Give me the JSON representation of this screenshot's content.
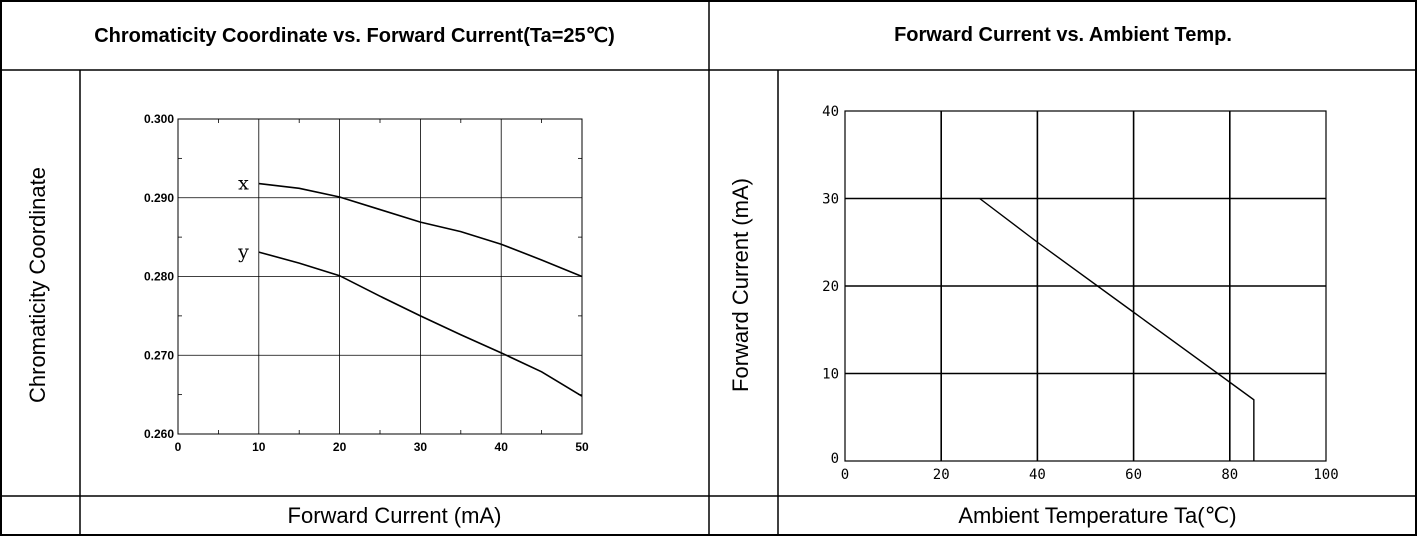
{
  "left_panel": {
    "title": "Chromaticity Coordinate vs. Forward Current(Ta=25℃)",
    "ylabel": "Chromaticity Coordinate",
    "xlabel": "Forward Current (mA)"
  },
  "right_panel": {
    "title": "Forward Current vs. Ambient Temp.",
    "ylabel": "Forward Current (mA)",
    "xlabel": "Ambient Temperature Ta(℃)"
  },
  "chart_data": [
    {
      "type": "line",
      "title": "Chromaticity Coordinate vs. Forward Current(Ta=25℃)",
      "xlabel": "Forward Current (mA)",
      "ylabel": "Chromaticity Coordinate",
      "xlim": [
        0,
        50
      ],
      "ylim": [
        0.26,
        0.3
      ],
      "xticks": [
        "0",
        "10",
        "20",
        "30",
        "40",
        "50"
      ],
      "yticks": [
        "0.260",
        "0.270",
        "0.280",
        "0.290",
        "0.300"
      ],
      "grid": true,
      "series": [
        {
          "name": "x",
          "x": [
            10,
            15,
            20,
            25,
            30,
            35,
            40,
            45,
            50
          ],
          "y": [
            0.2918,
            0.2912,
            0.2901,
            0.2885,
            0.2869,
            0.2857,
            0.2841,
            0.2821,
            0.28
          ]
        },
        {
          "name": "y",
          "x": [
            10,
            15,
            20,
            25,
            30,
            35,
            40,
            45,
            50
          ],
          "y": [
            0.2831,
            0.2817,
            0.2801,
            0.2775,
            0.275,
            0.2726,
            0.2703,
            0.2679,
            0.2648
          ]
        }
      ]
    },
    {
      "type": "line",
      "title": "Forward Current vs. Ambient Temp.",
      "xlabel": "Ambient Temperature Ta(℃)",
      "ylabel": "Forward Current (mA)",
      "xlim": [
        0,
        100
      ],
      "ylim": [
        0,
        40
      ],
      "xticks": [
        "0",
        "20",
        "40",
        "60",
        "80",
        "100"
      ],
      "yticks": [
        "0",
        "10",
        "20",
        "30",
        "40"
      ],
      "grid": true,
      "series": [
        {
          "x": [
            28,
            40,
            60,
            80,
            85,
            85
          ],
          "y": [
            30,
            25,
            17,
            9,
            7,
            0
          ]
        }
      ]
    }
  ]
}
